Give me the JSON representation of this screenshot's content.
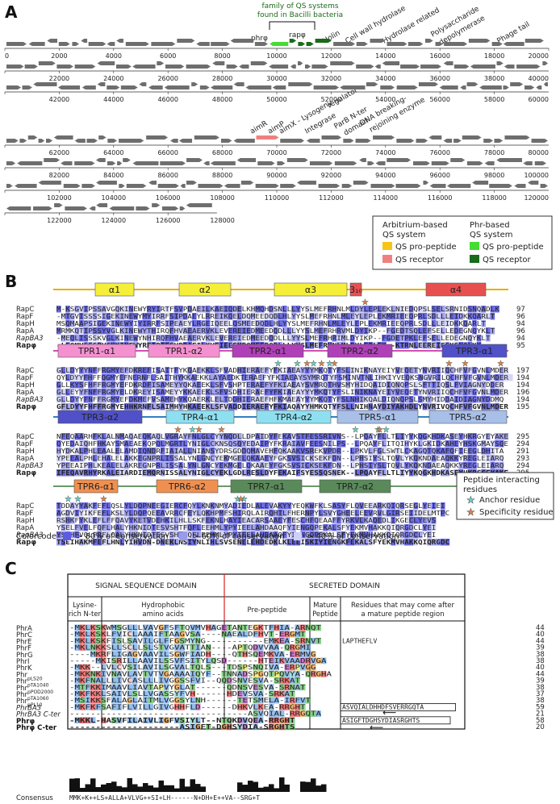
{
  "panels": {
    "a": "A",
    "b": "B",
    "c": "C"
  },
  "panelA": {
    "family_label": [
      "family of QS systems",
      "found in Bacilli bacteria"
    ],
    "gene_labels_row1": [
      "phrφ",
      "rapφ",
      "Holin",
      "Cell wall hydrolase",
      "Hydrolase related",
      "Polysaccharide",
      "depolymerase",
      "Phage tail"
    ],
    "gene_labels_row4": [
      "aimR",
      "aimP",
      "aimX - Lysogeny",
      "regulator",
      "Integrase",
      "ParB N-ter",
      "domain",
      "DNA breaking-",
      "rejoining enzyme"
    ],
    "ticks": [
      [
        "0",
        "2000",
        "4000",
        "6000",
        "8000",
        "10000",
        "12000",
        "14000",
        "16000",
        "18000",
        "20000"
      ],
      [
        "22000",
        "24000",
        "26000",
        "28000",
        "30000",
        "32000",
        "34000",
        "36000",
        "38000",
        "40000"
      ],
      [
        "42000",
        "44000",
        "46000",
        "48000",
        "50000",
        "52000",
        "54000",
        "56000",
        "58000",
        "60000"
      ],
      [
        "62000",
        "64000",
        "66000",
        "68000",
        "70000",
        "72000",
        "74000",
        "76000",
        "78000",
        "80000"
      ],
      [
        "82000",
        "84000",
        "86000",
        "88000",
        "90000",
        "92000",
        "94000",
        "96000",
        "98000",
        "100000"
      ],
      [
        "102000",
        "104000",
        "106000",
        "108000",
        "110000",
        "112000",
        "114000",
        "116000",
        "118000",
        "120000"
      ],
      [
        "122000",
        "124000",
        "126000",
        "128000"
      ]
    ],
    "legend": {
      "col1_title": [
        "Arbitrium-based",
        "QS system"
      ],
      "col2_title": [
        "Phr-based",
        "QS system"
      ],
      "col1_items": [
        "QS pro-peptide",
        "QS receptor"
      ],
      "col2_items": [
        "QS pro-peptide",
        "QS receptor"
      ],
      "colors": {
        "arb_pro": "#f5c518",
        "arb_rec": "#f08080",
        "phr_pro": "#44dd33",
        "phr_rec": "#1a6b1a"
      }
    }
  },
  "panelB": {
    "blocks": [
      {
        "helices": [
          "α1",
          "α2",
          "α3",
          "3₁₀",
          "α4"
        ],
        "names": [
          "RapC",
          "RapF",
          "RapH",
          "RapA",
          "RapBA3",
          "Rapφ"
        ],
        "seqs": [
          "M-KSGVIPSSAVGQKINEWYRYIRTFSVPDAEILKAEIQDELKHMQHDSNLLLYYSLMEFRHNLMLDYLEPLEKLNIEDQPSLSELSRNIDSNQADLK",
          "-MTGVISSSSIGEKINEWYMYIRRFSIPDAEYLRREIKQELDQMEEDQDLHLYYSLMEFRHNLMLEYLEPLEKMRIEEQPRLSDLLLEIDKKQARLT",
          "MSQMAAPSIGEKINEWYIYIRRFSIPEAEYLRGEIQEELQSMEEDQDLHLYYSLMEFRHNLMLEYLEPLEKMRIEEQPRLSDLLLEIDKKQARLT",
          "MRMKQTIPSSYVGLKINEWYTHIRQFHVAEAERVKLEVEREIEDMEEDQDLLLYYSLMEFRHRVMLDYIKP--FGEDTSQLEFSELLEDEGNQYKLT",
          "-MEQLISSSKVGLKINEWYNHIRQFHVAEAERVKLEVEREIEDMEEDQDLLLYYSLMEFRHRIMLDYIKP--FGDETPKLEFSELLEDEGNQYKLT",
          "-LEQMVSSSRVGKKINEWYRFIRTFSVPDAEILKVEIEEEMDQMEEDQDLLLYYSLMEFRHNLMLDYLEPLEK--KTRNLEEREIESKSNQLKK"
        ],
        "lens": [
          "97",
          "96",
          "94",
          "96",
          "94",
          "95"
        ]
      },
      {
        "helices": [
          "TPR1-α1",
          "TPR1-α2",
          "TPR2-α1",
          "TPR2-α2",
          "TPR3-α1"
        ],
        "names": [
          "RapC",
          "RapF",
          "RapH",
          "RapA",
          "RapBA3",
          "Rapφ"
        ],
        "seqs": [
          "GLLDYYYNFFRGMYEFDKREFISAITFYKQAEKKLSFVADHIERAEFYFKIAEAYYYMKQTYFSLINIKNAYEIYVEQETYNVRIIQCHFVFGVNLMDER",
          "QYLDYYFHFFQGMYEFNERNFLSAITHYKKAEKKLAYAEDKTERAEFYFKIAEAYSYMRQTYFSMINVTNLIHKIYVEQKSNGVRILQCHFVFGVNLMDER",
          "GLLKYSFHFFRGMYEFDKRDFISAMEYYQKAEEKLSFVSHPTERAEFYFKIAEAYSVMRQTHVSMYHIDQAIDIQNQPSLSFTTIQSLFVIAGNYDDER",
          "GLLEYYFNFFRGMYELDKREYISAMEYYKKAEEKLSFVSDHIERAEFYFKIAEAYYYMKQTYFSLINIKNAYEIYVEQETYNVRIIQCHFVFGVNLMDER",
          "GLLDYYFNFFRGMYEFDKMEFVSAMEHYKQAERKLELTDDHIERAEFHFKMAEAYYYMKQTYFSLNHIKQALDIQNQPSLSMYHIDDAIDIAGNYDDMQ",
          "GFLDYYFHFFRGMYEHHKRNFLSAIMHYHKAEEKLSFVADDIERAEFYFKIAQAYYHMKQTYFSLLNIHNAYDIYAKHDLYNVRIVQCHFVFGVNLMDER"
        ],
        "lens": [
          "197",
          "194",
          "194",
          "196",
          "194",
          "195"
        ]
      },
      {
        "helices": [
          "TPR3-α2",
          "TPR4-α1",
          "TPR4-α2",
          "TPR5-α1",
          "TPR5-α2"
        ],
        "names": [
          "RapC",
          "RapF",
          "RapH",
          "RapA",
          "RapBA3",
          "Rapφ"
        ],
        "seqs": [
          "NFEQAARHFKLALNMAQAEQKAQLVGRAYFNLGLCYYNQDLLDPAIDYFEKAVSTFESSRIVNS--LPQAYFLLTLIYYKQGKHDKASEYHKRGYEYAKE",
          "QYEDAIQHFHKAYSMAEAEKQPQLMGRTLYNIGLCKNSQSQYEDAIPYFKRAIAVFEESNILPS--LPQAYFLITQIHYKLGKIDKAHEYHSKGMAYSQE",
          "HYDKALPHLEAALELAMDIQNDRFIAIALLNIANSYDRSGDDQMAVEHFQKAAKVSREKVPDR--LPKVLFGLSWTLCKAGQTQKAFQFIEEGLDHITA",
          "YPEEALPHLEHALELAKKEGNPRLISSALYNLGNCYEKMGELQKAAEYFGKSVSICKSEKFDN--LPHSIYSLTQVLYKQKNDAEAQKKYREGLEIARQ",
          "YPEEAIPHLKEALELAKREGNPRLISSALYNLGNCYEKMGELQKAAEYFGKSVSICKSEKFDN--LPHSIYSLTQVLYKQKNDAEAQKKYREGLEIARQ",
          "IFEQAVRHYRKALEIARDIEMQRNISSALYNIGLCYEKLGDLRESLDYFEKAIFSYESSQSNEK--LPQAYFLLTLIYYKQGKHDKASEYHKRGSEYAKE"
        ],
        "lens": [
          "295",
          "294",
          "291",
          "293",
          "294",
          "295"
        ]
      },
      {
        "helices": [
          "TPR6-α1",
          "TPR6-α2",
          "TPR7-α1",
          "TPR7-α2"
        ],
        "names": [
          "RapC",
          "RapF",
          "RapH",
          "RapA",
          "RapBA3",
          "Rapφ"
        ],
        "seqs": [
          "TDDAYYAKFEFLQSLYLDQPNEEGIERCFQYLKNKNMYADIEDLALEVAKYYYEQKWFKLSASYFLQVEEARKQIQRSEGLYEIEI",
          "AGDVIYIKFEFLKSLYLDQPQEEAVRRCFEYLQKHPMFSHIRQLAIRQHTLFHERNPYLSVYGHEELEEVRVLGIRSEIIDELMTPC",
          "RSHKFYKLEFLFFQAVYKETVDEHKILHLLSKFEKNLHAYIEACARSAAEYFESCHFQEAAFFYRKVLKAQEDLIKGECLYEVS",
          "YSELFVELFQFLHALYHKNIDTESVSHTFQFLEEHMLYPYIEELAHDAAQFYIENGQPEKALSFYEKMVHAKKQIQRGDCLYEI",
          "YSEHFVQLFRFLQALYHKNIDTESVSHTFQFLEEHMLYPYIEELAHDAAQFYIENGQPEKALSFYEKMVHAKKQIQRGDCLYEI",
          "TSEIHAKMFEFLHNLYIHVDN-DNEKLNSIYNLIHLSVSENELEHDEDKLKLEEISKIYIENGKFEKALSFYEKMVHAKKQIQRGDC"
        ],
        "lens": [
          "",
          "",
          "",
          "",
          "",
          ""
        ]
      }
    ],
    "legend_title": [
      "Peptide interacting",
      "residues"
    ],
    "legend_items": [
      "Anchor residue",
      "Specificity residue"
    ],
    "colorcode_label": "Colorcode",
    "colorcode_items": [
      "> 80% of conservation",
      "> 60% of conservation",
      "> 40% of conservation"
    ],
    "colorcode_colors": [
      "#5c5ce0",
      "#9a9aec",
      "#d0d0f6"
    ]
  },
  "panelC": {
    "domain1": "SIGNAL SEQUENCE DOMAIN",
    "domain2": "SECRETED DOMAIN",
    "col_lysine": [
      "Lysine-",
      "rich N-ter"
    ],
    "col_hydro": [
      "Hydrophobic",
      "amino acids"
    ],
    "col_pre": "Pre-peptide",
    "col_mature": [
      "Mature",
      "Peptide"
    ],
    "col_residues": [
      "Residues that may come after",
      "a mature peptide region"
    ],
    "rows": [
      {
        "name": "PhrA",
        "sub": "",
        "bold": false,
        "italic": false,
        "seq": "-MKLKSKWMSGLLLVAVGFSFTQVMVHAGETANTEGKTFHIA-ARNQT",
        "extra": "",
        "len": "44"
      },
      {
        "name": "PhrC",
        "sub": "",
        "bold": false,
        "italic": false,
        "seq": "-MKLKSKLFVICLAAAIFTAAGVSA----NAEALDFHVT-ERGMT",
        "extra": "",
        "len": "40"
      },
      {
        "name": "PhrE",
        "sub": "",
        "bold": false,
        "italic": false,
        "seq": "-MKLKSKFISLSAVILGLFFGSMYNG-----------EMKEA-SRNVT",
        "extra": "LAPTHEFLV",
        "len": "44"
      },
      {
        "name": "PhrF",
        "sub": "",
        "bold": false,
        "italic": false,
        "seq": "-MKLNKKSLLSCLLSLSTVGVATTIAN----APTQDVVAA-QRGMI",
        "extra": "",
        "len": "39"
      },
      {
        "name": "PhrG",
        "sub": "",
        "bold": false,
        "italic": false,
        "seq": "----MKRFLIGAGVAAVILSGWFIADH----QTHSQEMKVA-ERMVG",
        "extra": "",
        "len": "38"
      },
      {
        "name": "PhrI",
        "sub": "",
        "bold": false,
        "italic": false,
        "seq": "-----MKISRILLAAVILSSVFSITYLQSD------HTEIKVAADRVGA",
        "extra": "",
        "len": "38"
      },
      {
        "name": "PhrK",
        "sub": "",
        "bold": false,
        "italic": false,
        "seq": "-MKK--LVLCVSILAVILSGVALTQLS---TDSPSNQIVA-ERPVGG",
        "extra": "",
        "len": "40"
      },
      {
        "name": "Phr",
        "sub": "pLS20",
        "bold": false,
        "italic": false,
        "seq": "-MKKNKIVNAVLAVTVTVGAAAAIQYF--TNNADSPGQTPQVYA-QRGHA",
        "extra": "",
        "len": "44"
      },
      {
        "name": "Phr",
        "sub": "pTA1040",
        "bold": false,
        "italic": false,
        "seq": "-MKFNALLLIVCASLLLIVGGSSFVI--QQDSNVESVA-SRKAT",
        "extra": "",
        "len": "39"
      },
      {
        "name": "Phr",
        "sub": "pPOD2000",
        "bold": false,
        "italic": false,
        "seq": "-MTFKKIMAAVLIAVTAPVYGLAT------QDNSVESVA-SRNAT",
        "extra": "",
        "len": "38"
      },
      {
        "name": "Phr",
        "sub": "pTA1060",
        "bold": false,
        "italic": false,
        "seq": "-MKFKKLSAIVLSLLVGASSYFVH------HDEVSVA-SRKAT",
        "extra": "",
        "len": "37"
      },
      {
        "name": "Phr",
        "sub": "pPL10",
        "bold": false,
        "italic": false,
        "seq": "-MSIKKSFALAGLAITMLVGGSYLNH------TETSMELA-IRFVT",
        "extra": "",
        "len": "38"
      },
      {
        "name": "PhrBA3",
        "sub": "",
        "bold": false,
        "italic": true,
        "seq": "-MKFKFSAFIFLVILLGIVGHHFLD------DHKVLKEA-RRGHT",
        "extra": "ASVQIALDHHDFSVERRGQTA",
        "len": "59"
      },
      {
        "name": "PhrBA3 C-ter",
        "sub": "",
        "bold": false,
        "italic": true,
        "seq": "----------------------------------ASVQIAL-RRGQTA",
        "extra": "",
        "len": "21"
      },
      {
        "name": "Phrφ",
        "sub": "",
        "bold": true,
        "italic": false,
        "seq": "-MKKL-HASVFILAIVLIGFVSIYLT--NTQKDVQEA-RRGHT",
        "extra": "ASIGFTDGHSYDIASRGHTS",
        "len": "58"
      },
      {
        "name": "Phrφ C-ter",
        "sub": "",
        "bold": true,
        "italic": false,
        "seq": "---------------------ASIGFT-DGHSYDIA-SRGHTS",
        "extra": "",
        "len": "20"
      }
    ],
    "consensus_label": "Consensus",
    "consensus_seq": "MMK+K++LS+ALLA+VLVG++SI+LH------N+DH+E++VA--SRG+T"
  }
}
